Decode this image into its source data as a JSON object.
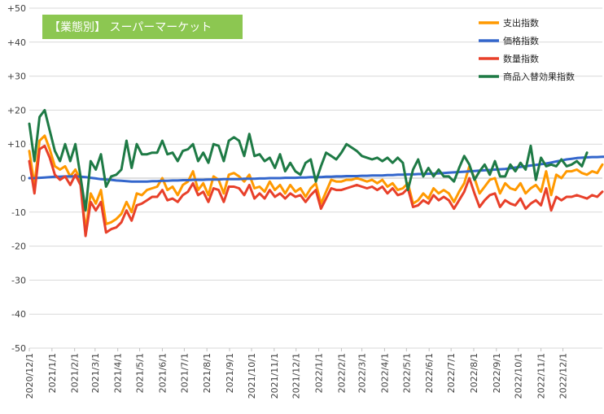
{
  "chart_data": {
    "type": "line",
    "title": "【業態別】 スーパーマーケット",
    "xlabel": "",
    "ylabel": "",
    "ylim": [
      -50,
      50
    ],
    "y_ticks": [
      "+50",
      "+40",
      "+30",
      "+20",
      "+10",
      "0",
      "-10",
      "-20",
      "-30",
      "-40",
      "-50"
    ],
    "y_tick_values": [
      50,
      40,
      30,
      20,
      10,
      0,
      -10,
      -20,
      -30,
      -40,
      -50
    ],
    "x_tick_labels": [
      "2020/12/1",
      "2021/1/1",
      "2021/2/1",
      "2021/3/1",
      "2021/4/1",
      "2021/5/1",
      "2021/6/1",
      "2021/7/1",
      "2021/8/1",
      "2021/9/1",
      "2021/10/1",
      "2021/11/1",
      "2021/12/1",
      "2022/1/1",
      "2022/2/1",
      "2022/3/1",
      "2022/4/1",
      "2022/5/1",
      "2022/6/1",
      "2022/7/1",
      "2022/8/1",
      "2022/9/1",
      "2022/10/1",
      "2022/11/1",
      "2022/12/1"
    ],
    "x_tick_weeks": [
      0,
      4.43,
      8.86,
      12.86,
      17.29,
      21.57,
      26.0,
      30.29,
      34.71,
      39.14,
      43.43,
      47.86,
      52.14,
      56.57,
      61.0,
      65.0,
      69.43,
      73.71,
      78.14,
      82.43,
      86.86,
      91.29,
      95.57,
      100.0,
      104.29
    ],
    "x_axis": {
      "start": "2020-12-01",
      "step": "weekly"
    },
    "grid": true,
    "legend_position": "top-right",
    "series": [
      {
        "name": "支出指数",
        "color": "#FF9900",
        "values": [
          8.0,
          -2.0,
          11.0,
          12.5,
          8.5,
          3.5,
          2.5,
          3.5,
          0.5,
          2.5,
          -0.5,
          -15.5,
          -4.5,
          -7.5,
          -3.5,
          -13.5,
          -13.0,
          -12.0,
          -10.5,
          -7.0,
          -10.0,
          -4.5,
          -5.0,
          -3.5,
          -3.0,
          -2.5,
          0.0,
          -3.5,
          -2.5,
          -5.0,
          -2.0,
          -1.0,
          2.0,
          -3.5,
          -1.5,
          -5.0,
          0.5,
          -0.5,
          -4.5,
          1.0,
          1.5,
          0.5,
          -1.0,
          1.0,
          -3.0,
          -2.5,
          -4.0,
          -1.0,
          -3.5,
          -2.0,
          -4.5,
          -2.0,
          -4.0,
          -3.0,
          -5.5,
          -3.0,
          -1.5,
          -7.5,
          -4.0,
          -0.5,
          -1.0,
          -1.0,
          -0.5,
          -0.5,
          0.0,
          -0.5,
          -1.0,
          -0.5,
          -1.5,
          -0.5,
          -2.5,
          -1.5,
          -3.5,
          -3.0,
          -1.5,
          -7.5,
          -6.5,
          -4.5,
          -6.0,
          -3.0,
          -4.5,
          -3.5,
          -4.5,
          -7.0,
          -4.0,
          -1.5,
          3.5,
          0.0,
          -4.5,
          -2.5,
          -0.5,
          0.0,
          -4.5,
          -1.5,
          -3.0,
          -3.5,
          -1.5,
          -4.5,
          -3.0,
          -2.0,
          -4.0,
          2.0,
          -5.0,
          1.0,
          0.0,
          2.0,
          2.0,
          2.5,
          1.5,
          1.0,
          2.0,
          1.5,
          4.0
        ]
      },
      {
        "name": "価格指数",
        "color": "#3366CC",
        "values": [
          0.0,
          0.0,
          0.1,
          0.2,
          0.3,
          0.4,
          0.4,
          0.5,
          0.5,
          0.5,
          0.4,
          0.3,
          0.1,
          -0.1,
          -0.3,
          -0.4,
          -0.5,
          -0.7,
          -0.8,
          -0.9,
          -1.0,
          -1.0,
          -1.0,
          -1.0,
          -0.9,
          -0.9,
          -0.8,
          -0.8,
          -0.7,
          -0.7,
          -0.6,
          -0.6,
          -0.5,
          -0.5,
          -0.5,
          -0.4,
          -0.4,
          -0.4,
          -0.3,
          -0.3,
          -0.3,
          -0.3,
          -0.2,
          -0.2,
          -0.2,
          -0.1,
          -0.1,
          0.0,
          0.0,
          0.0,
          0.1,
          0.1,
          0.1,
          0.2,
          0.2,
          0.3,
          0.3,
          0.3,
          0.4,
          0.4,
          0.5,
          0.5,
          0.6,
          0.6,
          0.6,
          0.7,
          0.7,
          0.8,
          0.8,
          0.8,
          0.9,
          0.9,
          1.0,
          1.0,
          1.1,
          1.1,
          1.2,
          1.2,
          1.3,
          1.3,
          1.4,
          1.5,
          1.6,
          1.7,
          1.8,
          1.9,
          2.0,
          2.1,
          2.2,
          2.3,
          2.4,
          2.5,
          2.6,
          2.7,
          2.9,
          3.1,
          3.3,
          3.5,
          3.7,
          3.9,
          4.1,
          4.3,
          4.6,
          4.9,
          5.2,
          5.5,
          5.7,
          5.9,
          6.0,
          6.1,
          6.2,
          6.2,
          6.3,
          6.3
        ]
      },
      {
        "name": "数量指数",
        "color": "#E8402A",
        "values": [
          5.0,
          -4.5,
          8.5,
          9.5,
          6.0,
          1.0,
          -0.5,
          0.5,
          -2.0,
          1.0,
          -2.0,
          -17.0,
          -7.0,
          -9.5,
          -7.0,
          -16.0,
          -15.0,
          -14.5,
          -13.0,
          -9.5,
          -12.5,
          -8.0,
          -7.5,
          -6.5,
          -5.5,
          -5.5,
          -3.5,
          -6.5,
          -6.0,
          -7.0,
          -5.0,
          -4.0,
          -1.5,
          -5.0,
          -4.0,
          -7.0,
          -3.0,
          -3.5,
          -7.0,
          -2.5,
          -2.5,
          -3.0,
          -5.0,
          -2.0,
          -6.0,
          -4.5,
          -6.0,
          -3.5,
          -5.5,
          -4.5,
          -6.0,
          -4.5,
          -5.5,
          -5.0,
          -7.0,
          -5.0,
          -3.5,
          -9.0,
          -6.0,
          -3.0,
          -3.5,
          -3.5,
          -3.0,
          -2.5,
          -2.0,
          -2.5,
          -3.0,
          -2.5,
          -3.5,
          -2.5,
          -4.5,
          -3.0,
          -5.0,
          -4.5,
          -3.0,
          -8.5,
          -8.0,
          -6.5,
          -7.5,
          -5.0,
          -6.5,
          -5.5,
          -6.5,
          -9.0,
          -6.5,
          -4.0,
          0.0,
          -4.5,
          -8.5,
          -6.5,
          -5.0,
          -4.5,
          -8.5,
          -6.5,
          -7.5,
          -8.0,
          -6.0,
          -9.0,
          -7.5,
          -6.5,
          -8.0,
          -3.0,
          -9.5,
          -5.5,
          -6.5,
          -5.5,
          -5.5,
          -5.0,
          -5.5,
          -6.0,
          -5.0,
          -5.5,
          -4.0
        ]
      },
      {
        "name": "商品入替効果指数",
        "color": "#1E7A45",
        "values": [
          16.0,
          5.0,
          18.0,
          20.0,
          14.0,
          8.0,
          5.0,
          10.0,
          5.0,
          10.0,
          0.5,
          -9.5,
          5.0,
          2.5,
          7.0,
          -2.5,
          0.5,
          1.0,
          2.5,
          11.0,
          3.0,
          10.0,
          7.0,
          7.0,
          7.5,
          7.5,
          11.0,
          7.0,
          7.5,
          5.0,
          8.0,
          8.5,
          10.0,
          5.0,
          7.5,
          4.5,
          10.0,
          9.5,
          5.0,
          11.0,
          12.0,
          11.0,
          6.5,
          13.0,
          6.5,
          7.0,
          5.0,
          6.0,
          3.0,
          7.0,
          2.0,
          4.5,
          2.0,
          1.0,
          4.5,
          5.5,
          -1.0,
          3.5,
          7.5,
          6.5,
          5.5,
          7.5,
          10.0,
          9.0,
          8.0,
          6.5,
          6.0,
          5.5,
          6.0,
          5.0,
          6.0,
          4.5,
          6.0,
          4.5,
          -3.5,
          2.5,
          5.5,
          0.5,
          3.0,
          0.5,
          2.5,
          0.5,
          0.5,
          -1.0,
          3.0,
          6.5,
          4.0,
          -0.5,
          2.0,
          4.0,
          1.0,
          5.0,
          0.5,
          0.5,
          4.0,
          2.0,
          4.5,
          2.5,
          9.5,
          -0.5,
          6.0,
          3.5,
          4.0,
          3.5,
          5.5,
          3.5,
          4.0,
          5.0,
          3.5,
          7.5
        ]
      }
    ]
  }
}
